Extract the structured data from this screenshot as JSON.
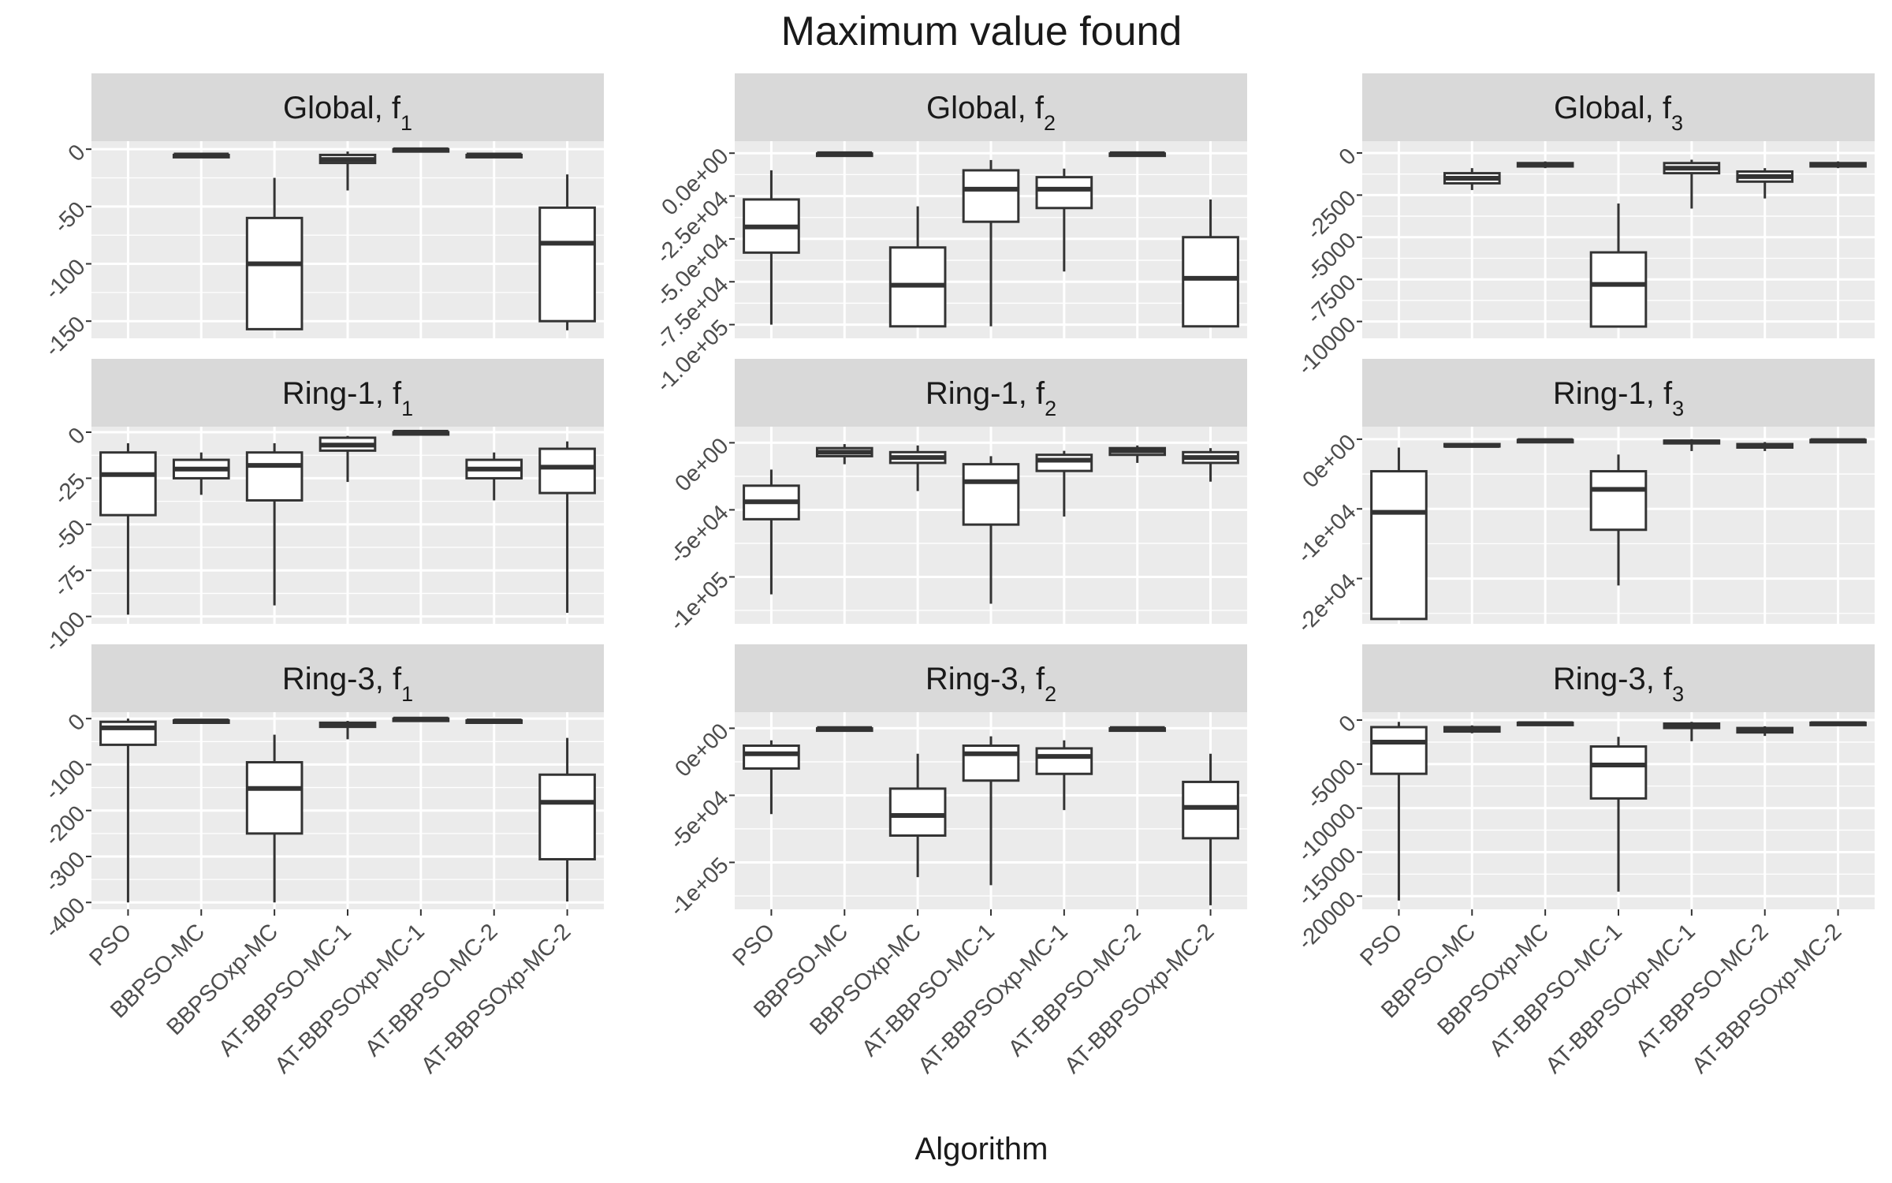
{
  "chart_data": {
    "type": "boxplot",
    "title": "Maximum value found",
    "xlabel": "Algorithm",
    "ylabel": "",
    "categories": [
      "PSO",
      "BBPSO-MC",
      "BBPSOxp-MC",
      "AT-BBPSO-MC-1",
      "AT-BBPSOxp-MC-1",
      "AT-BBPSO-MC-2",
      "AT-BBPSOxp-MC-2"
    ],
    "grid": true,
    "legend": "none",
    "box_fields": [
      "min",
      "q1",
      "median",
      "q3",
      "max"
    ],
    "panels": [
      {
        "strip": "Global, f",
        "sub": "1",
        "ylim": [
          -165,
          7
        ],
        "yticks": [
          0,
          -50,
          -100,
          -150
        ],
        "ytick_labels": [
          "0",
          "-50",
          "-100",
          "-150"
        ],
        "boxes": [
          null,
          [
            -6,
            -6,
            -5,
            -5,
            -5
          ],
          [
            -157,
            -157,
            -100,
            -60,
            -25
          ],
          [
            -36,
            -12,
            -9,
            -5,
            -2
          ],
          [
            -1.5,
            -1,
            -0.5,
            0,
            0
          ],
          [
            -6,
            -6,
            -5,
            -5,
            -4
          ],
          [
            -158,
            -150,
            -82,
            -51,
            -22
          ]
        ]
      },
      {
        "strip": "Global, f",
        "sub": "2",
        "ylim": [
          -108000,
          7000
        ],
        "yticks": [
          0,
          -25000,
          -50000,
          -75000,
          -100000
        ],
        "ytick_labels": [
          "0.0e+00",
          "-2.5e+04",
          "-5.0e+04",
          "-7.5e+04",
          "-1.0e+05"
        ],
        "boxes": [
          [
            -100000,
            -58000,
            -43000,
            -27000,
            -10000
          ],
          [
            -600,
            -400,
            -300,
            -200,
            -100
          ],
          [
            -101000,
            -101000,
            -77000,
            -55000,
            -31000
          ],
          [
            -101000,
            -40000,
            -21000,
            -10000,
            -4000
          ],
          [
            -69000,
            -32000,
            -21000,
            -14000,
            -9000
          ],
          [
            -600,
            -400,
            -300,
            -200,
            -100
          ],
          [
            -101000,
            -101000,
            -73000,
            -49000,
            -27000
          ]
        ]
      },
      {
        "strip": "Global, f",
        "sub": "3",
        "ylim": [
          -11000,
          700
        ],
        "yticks": [
          0,
          -2500,
          -5000,
          -7500,
          -10000
        ],
        "ytick_labels": [
          "0",
          "-2500",
          "-5000",
          "-7500",
          "-10000"
        ],
        "boxes": [
          null,
          [
            -2200,
            -1800,
            -1500,
            -1200,
            -900
          ],
          [
            -900,
            -800,
            -700,
            -600,
            -500
          ],
          [
            -10300,
            -10300,
            -7800,
            -5900,
            -3000
          ],
          [
            -3300,
            -1200,
            -900,
            -600,
            -400
          ],
          [
            -2700,
            -1700,
            -1400,
            -1100,
            -900
          ],
          [
            -900,
            -800,
            -700,
            -600,
            -500
          ]
        ]
      },
      {
        "strip": "Ring-1, f",
        "sub": "1",
        "ylim": [
          -104,
          3
        ],
        "yticks": [
          0,
          -25,
          -50,
          -75,
          -100
        ],
        "ytick_labels": [
          "0",
          "-25",
          "-50",
          "-75",
          "-100"
        ],
        "boxes": [
          [
            -99,
            -45,
            -23,
            -11,
            -6
          ],
          [
            -34,
            -25,
            -20,
            -15,
            -11
          ],
          [
            -94,
            -37,
            -18,
            -11,
            -6
          ],
          [
            -27,
            -10,
            -7,
            -3,
            -2
          ],
          [
            -1,
            -0.5,
            0,
            0,
            0
          ],
          [
            -37,
            -25,
            -20,
            -15,
            -11
          ],
          [
            -98,
            -33,
            -19,
            -9,
            -5
          ]
        ]
      },
      {
        "strip": "Ring-1, f",
        "sub": "2",
        "ylim": [
          -135000,
          12000
        ],
        "yticks": [
          0,
          -50000,
          -100000
        ],
        "ytick_labels": [
          "0e+00",
          "-5e+04",
          "-1e+05"
        ],
        "boxes": [
          [
            -113000,
            -57000,
            -44000,
            -32000,
            -20000
          ],
          [
            -16000,
            -10000,
            -7000,
            -4000,
            -1000
          ],
          [
            -36000,
            -15000,
            -11000,
            -7000,
            -2000
          ],
          [
            -120000,
            -61000,
            -29000,
            -16000,
            -10000
          ],
          [
            -55000,
            -21000,
            -13000,
            -9000,
            -6000
          ],
          [
            -15000,
            -9000,
            -6000,
            -4000,
            -2000
          ],
          [
            -29000,
            -15000,
            -11000,
            -7000,
            -4000
          ]
        ]
      },
      {
        "strip": "Ring-1, f",
        "sub": "3",
        "ylim": [
          -26500,
          1800
        ],
        "yticks": [
          0,
          -10000,
          -20000
        ],
        "ytick_labels": [
          "0e+00",
          "-1e+04",
          "-2e+04"
        ],
        "boxes": [
          [
            -25800,
            -25800,
            -10500,
            -4600,
            -1200
          ],
          [
            -1200,
            -1000,
            -900,
            -700,
            -600
          ],
          [
            -500,
            -300,
            -200,
            -100,
            0
          ],
          [
            -21000,
            -13000,
            -7200,
            -4600,
            -2200
          ],
          [
            -1700,
            -600,
            -400,
            -200,
            0
          ],
          [
            -1700,
            -1200,
            -900,
            -700,
            -400
          ],
          [
            -400,
            -300,
            -200,
            -100,
            0
          ]
        ]
      },
      {
        "strip": "Ring-3, f",
        "sub": "1",
        "ylim": [
          -415,
          14
        ],
        "yticks": [
          0,
          -100,
          -200,
          -300,
          -400
        ],
        "ytick_labels": [
          "0",
          "-100",
          "-200",
          "-300",
          "-400"
        ],
        "boxes": [
          [
            -400,
            -57,
            -20,
            -7,
            0
          ],
          [
            -8,
            -7,
            -5,
            -4,
            -3
          ],
          [
            -400,
            -250,
            -152,
            -95,
            -35
          ],
          [
            -45,
            -18,
            -13,
            -9,
            -5
          ],
          [
            -3,
            -2,
            -1,
            0,
            0
          ],
          [
            -8,
            -7,
            -5,
            -4,
            -3
          ],
          [
            -398,
            -306,
            -182,
            -122,
            -42
          ]
        ]
      },
      {
        "strip": "Ring-3, f",
        "sub": "2",
        "ylim": [
          -135000,
          12000
        ],
        "yticks": [
          0,
          -50000,
          -100000
        ],
        "ytick_labels": [
          "0e+00",
          "-5e+04",
          "-1e+05"
        ],
        "boxes": [
          [
            -64000,
            -30000,
            -19000,
            -13000,
            -9000
          ],
          [
            -600,
            -400,
            -200,
            -100,
            0
          ],
          [
            -111000,
            -80000,
            -65000,
            -45000,
            -19000
          ],
          [
            -117000,
            -39000,
            -19000,
            -13000,
            -6000
          ],
          [
            -61000,
            -34000,
            -21000,
            -15000,
            -9000
          ],
          [
            -600,
            -400,
            -200,
            -100,
            0
          ],
          [
            -132000,
            -82000,
            -59000,
            -40000,
            -19000
          ]
        ]
      },
      {
        "strip": "Ring-3, f",
        "sub": "3",
        "ylim": [
          -21500,
          900
        ],
        "yticks": [
          0,
          -5000,
          -10000,
          -15000,
          -20000
        ],
        "ytick_labels": [
          "0",
          "-5000",
          "-10000",
          "-15000",
          "-20000"
        ],
        "boxes": [
          [
            -20500,
            -6100,
            -2500,
            -800,
            -200
          ],
          [
            -1500,
            -1300,
            -1000,
            -800,
            -600
          ],
          [
            -600,
            -500,
            -400,
            -300,
            -200
          ],
          [
            -19500,
            -8900,
            -5100,
            -3000,
            -1900
          ],
          [
            -2400,
            -900,
            -600,
            -400,
            -200
          ],
          [
            -1800,
            -1400,
            -1100,
            -900,
            -700
          ],
          [
            -600,
            -500,
            -400,
            -300,
            -200
          ]
        ]
      }
    ]
  },
  "colors": {
    "panel_background": "#ebebeb",
    "strip_background": "#d9d9d9",
    "grid_major": "#ffffff",
    "box_fill": "#ffffff",
    "box_line": "#333333",
    "tick_text": "#4d4d4d",
    "title_text": "#1a1a1a"
  }
}
